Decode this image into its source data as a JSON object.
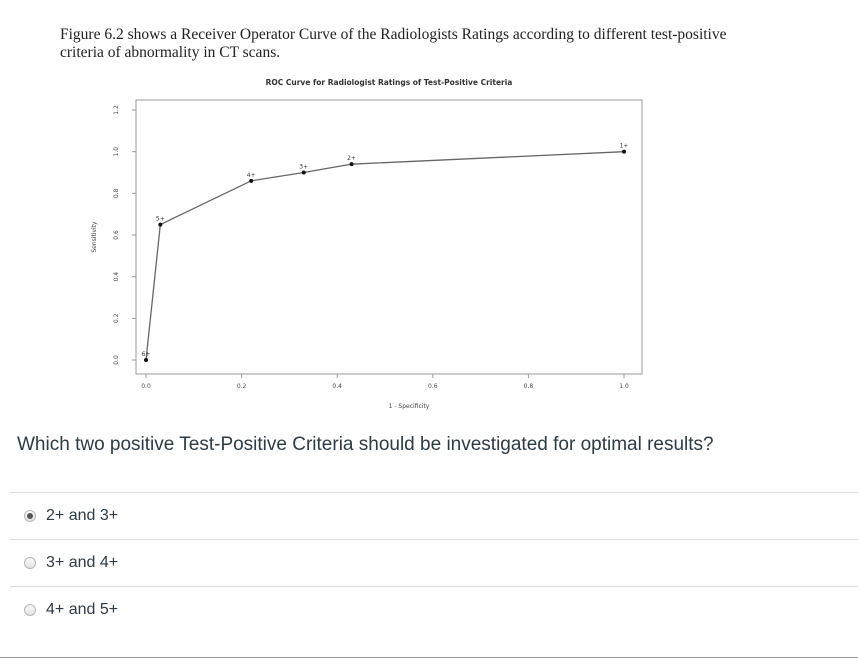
{
  "figure_caption": "Figure 6.2 shows a Receiver Operator Curve of the Radiologists Ratings according to different test-positive criteria of abnormality in CT scans.",
  "chart_data": {
    "type": "line",
    "title": "ROC Curve for Radiologist Ratings of Test-Positive Criteria",
    "xlabel": "1 - Specificity",
    "ylabel": "Sensitivity",
    "xlim": [
      0,
      1.0
    ],
    "ylim": [
      0,
      1.2
    ],
    "x_ticks": [
      "0.0",
      "0.2",
      "0.4",
      "0.6",
      "0.8",
      "1.0"
    ],
    "y_ticks": [
      "0.0",
      "0.2",
      "0.4",
      "0.6",
      "0.8",
      "1.0",
      "1.2"
    ],
    "points": [
      {
        "label": "6+",
        "x": 0.0,
        "y": 0.0
      },
      {
        "label": "5+",
        "x": 0.03,
        "y": 0.65
      },
      {
        "label": "4+",
        "x": 0.22,
        "y": 0.86
      },
      {
        "label": "3+",
        "x": 0.33,
        "y": 0.9
      },
      {
        "label": "2+",
        "x": 0.43,
        "y": 0.94
      },
      {
        "label": "1+",
        "x": 1.0,
        "y": 1.0
      }
    ],
    "grid": false,
    "line_color": "#666666",
    "marker_color": "#111111"
  },
  "question": "Which two positive Test-Positive Criteria should be investigated for optimal results?",
  "answers": [
    {
      "label": "2+ and 3+",
      "selected": true
    },
    {
      "label": "3+ and 4+",
      "selected": false
    },
    {
      "label": "4+ and 5+",
      "selected": false
    }
  ]
}
